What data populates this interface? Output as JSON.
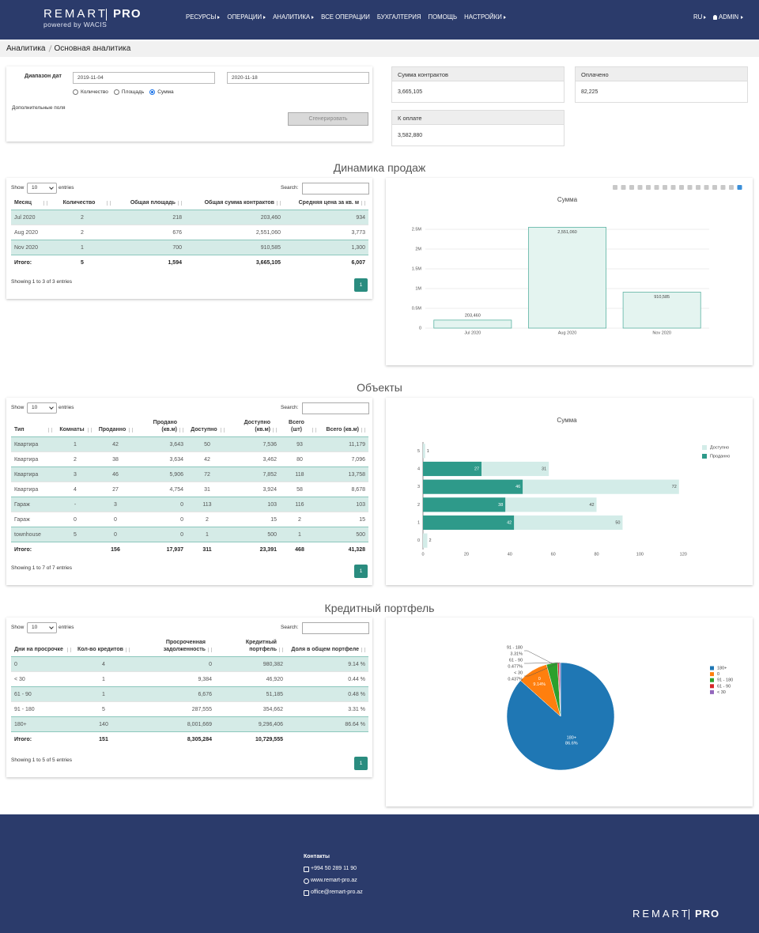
{
  "header": {
    "logo": "REMART",
    "logo_suffix": "PRO",
    "tagline": "powered by WACIS",
    "nav": [
      {
        "label": "РЕСУРСЫ",
        "dropdown": true
      },
      {
        "label": "ОПЕРАЦИИ",
        "dropdown": true
      },
      {
        "label": "АНАЛИТИКА",
        "dropdown": true
      },
      {
        "label": "ВСЕ ОПЕРАЦИИ",
        "dropdown": false
      },
      {
        "label": "БУХГАЛТЕРИЯ",
        "dropdown": false
      },
      {
        "label": "ПОМОЩЬ",
        "dropdown": false
      },
      {
        "label": "НАСТРОЙКИ",
        "dropdown": true
      }
    ],
    "language": "RU",
    "user": "ADMIN"
  },
  "breadcrumb": [
    "Аналитика",
    "Основная аналитика"
  ],
  "filters": {
    "date_range_label": "Диапазон дат",
    "date_from": "2019-11-04",
    "date_to": "2020-11-18",
    "modes": [
      "Количество",
      "Площадь",
      "Сумма"
    ],
    "selected_mode": 2,
    "extra_fields_label": "Дополнительные поля",
    "button": "Сгенерировать"
  },
  "stats": [
    {
      "label": "Сумма контрактов",
      "value": "3,665,105"
    },
    {
      "label": "Оплачено",
      "value": "82,225"
    },
    {
      "label": "К оплате",
      "value": "3,582,880"
    }
  ],
  "sections": [
    "Динамика продаж",
    "Объекты",
    "Кредитный портфель"
  ],
  "tables": [
    {
      "show_label": "Show",
      "page_length": "10",
      "entries_label": "entries",
      "search_label": "Search:",
      "columns": [
        "Месяц",
        "Количество",
        "Общая площадь",
        "Общая сумма контрактов",
        "Средняя цена за кв. м"
      ],
      "rows": [
        [
          "Jul 2020",
          "2",
          "218",
          "203,460",
          "934"
        ],
        [
          "Aug 2020",
          "2",
          "676",
          "2,551,060",
          "3,773"
        ],
        [
          "Nov 2020",
          "1",
          "700",
          "910,585",
          "1,300"
        ]
      ],
      "totals": [
        "Итого:",
        "5",
        "1,594",
        "3,665,105",
        "6,007"
      ],
      "info": "Showing 1 to 3 of 3 entries",
      "page": "1"
    },
    {
      "show_label": "Show",
      "page_length": "10",
      "entries_label": "entries",
      "search_label": "Search:",
      "columns": [
        "Тип",
        "Комнаты",
        "Проданно",
        "Продано (кв.м)",
        "Доступно",
        "Доступно (кв.м)",
        "Всего (шт)",
        "Всего (кв.м)"
      ],
      "rows": [
        [
          "Квартира",
          "1",
          "42",
          "3,643",
          "50",
          "7,536",
          "93",
          "11,179"
        ],
        [
          "Квартира",
          "2",
          "38",
          "3,634",
          "42",
          "3,462",
          "80",
          "7,096"
        ],
        [
          "Квартира",
          "3",
          "46",
          "5,906",
          "72",
          "7,852",
          "118",
          "13,758"
        ],
        [
          "Квартира",
          "4",
          "27",
          "4,754",
          "31",
          "3,924",
          "58",
          "8,678"
        ],
        [
          "Гараж",
          "-",
          "3",
          "0",
          "113",
          "103",
          "116",
          "103"
        ],
        [
          "Гараж",
          "0",
          "0",
          "0",
          "2",
          "15",
          "2",
          "15"
        ],
        [
          "townhouse",
          "5",
          "0",
          "0",
          "1",
          "500",
          "1",
          "500"
        ]
      ],
      "totals": [
        "Итого:",
        null,
        "156",
        "17,937",
        "311",
        "23,391",
        "468",
        "41,328"
      ],
      "info": "Showing 1 to 7 of 7 entries",
      "page": "1"
    },
    {
      "show_label": "Show",
      "page_length": "10",
      "entries_label": "entries",
      "search_label": "Search:",
      "columns": [
        "Дни на просрочке",
        "Кол-во кредитов",
        "Просроченная задолженность",
        "Кредитный портфель",
        "Доля в общем портфеле"
      ],
      "rows": [
        [
          "0",
          "4",
          "0",
          "980,382",
          "9.14 %"
        ],
        [
          "< 30",
          "1",
          "9,384",
          "46,920",
          "0.44 %"
        ],
        [
          "61 - 90",
          "1",
          "6,676",
          "51,185",
          "0.48 %"
        ],
        [
          "91 - 180",
          "5",
          "287,555",
          "354,662",
          "3.31 %"
        ],
        [
          "180+",
          "140",
          "8,001,669",
          "9,296,406",
          "86.64 %"
        ]
      ],
      "totals": [
        "Итого:",
        "151",
        "8,305,284",
        "10,729,555",
        null
      ],
      "info": "Showing 1 to 5 of 5 entries",
      "page": "1"
    }
  ],
  "chart_data": [
    {
      "type": "bar",
      "title": "Сумма",
      "categories": [
        "Jul 2020",
        "Aug 2020",
        "Nov 2020"
      ],
      "values": [
        203460,
        2551060,
        910585
      ],
      "value_labels": [
        "203,460",
        "2,551,060",
        "910,585"
      ],
      "color": "#e4f4f0",
      "edge_color": "#5db3a3",
      "ylim": [
        0,
        3000000
      ],
      "yticks": [
        0,
        {
          "value": 500000,
          "label": "0.5M"
        },
        {
          "value": 1000000,
          "label": "1M"
        },
        {
          "value": 1500000,
          "label": "1.5M"
        },
        {
          "value": 2000000,
          "label": "2M"
        },
        {
          "value": 2500000,
          "label": "2.5M"
        }
      ],
      "grid": true
    },
    {
      "type": "bar",
      "orientation": "horizontal",
      "stacked": true,
      "title": "Сумма",
      "categories": [
        "0",
        "1",
        "2",
        "3",
        "4",
        "5"
      ],
      "series": [
        {
          "name": "Проданно",
          "color": "#2e9a8a",
          "values": [
            0,
            42,
            38,
            46,
            27,
            0
          ]
        },
        {
          "name": "Доступно",
          "color": "#d3ece8",
          "values": [
            2,
            50,
            42,
            72,
            31,
            1
          ]
        }
      ],
      "xlim": [
        0,
        125
      ],
      "xticks": [
        0,
        20,
        40,
        60,
        80,
        100,
        120
      ],
      "grid": false,
      "legend": "top-right"
    },
    {
      "type": "pie",
      "categories": [
        "180+",
        "0",
        "91 - 180",
        "61 - 90",
        "< 30"
      ],
      "values": [
        86.6,
        9.14,
        3.31,
        0.477,
        0.437
      ],
      "value_labels": [
        "86.6%",
        "9.14%",
        "3.31%",
        "0.477%",
        "0.437%"
      ],
      "colors": [
        "#1f77b4",
        "#ff7f0e",
        "#2ca02c",
        "#d62728",
        "#9467bd"
      ],
      "direction": "clockwise",
      "legend": "right"
    }
  ],
  "footer": {
    "contacts_title": "Контакты",
    "phone": "+994 50 289 11 90",
    "website": "www.remart-pro.az",
    "email": "office@remart-pro.az",
    "logo": "REMART",
    "logo_suffix": "PRO"
  }
}
